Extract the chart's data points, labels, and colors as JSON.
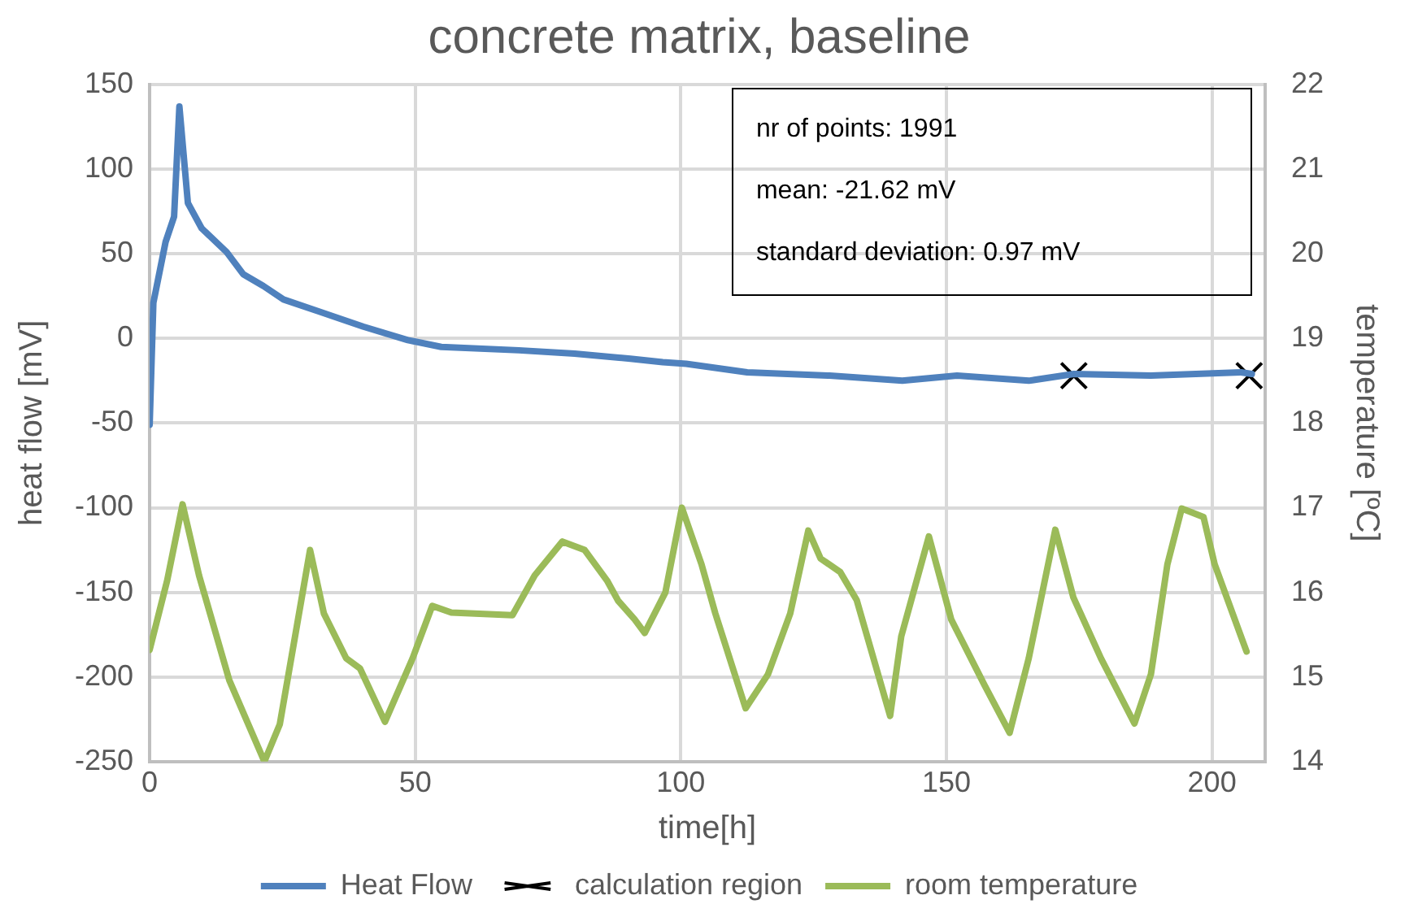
{
  "chart_data": {
    "type": "line",
    "title": "concrete matrix, baseline",
    "xlabel": "time[h]",
    "ylabel": "heat flow [mV]",
    "y2label": "temperature [ºC]",
    "annotations": [
      "nr of points: 1991",
      "mean: -21.62 mV",
      "standard deviation: 0.97 mV"
    ],
    "xlim": [
      0,
      210
    ],
    "xticks": [
      0,
      50,
      100,
      150,
      200
    ],
    "ylim": [
      -250,
      150
    ],
    "yticks": [
      -250,
      -200,
      -150,
      -100,
      -50,
      0,
      50,
      100,
      150
    ],
    "y2lim": [
      14,
      22
    ],
    "y2ticks": [
      14,
      15,
      16,
      17,
      18,
      19,
      20,
      21,
      22
    ],
    "grid": true,
    "legend": "bottom",
    "series": [
      {
        "name": "Heat Flow",
        "type": "line",
        "color": "#4f81bd",
        "marker": "none",
        "line_style": "solid",
        "x": [
          0,
          0.7,
          3,
          4.6,
          5.6,
          7.2,
          9.8,
          14.5,
          17.6,
          21.4,
          25.2,
          31.8,
          40.2,
          48.6,
          54.9,
          69.5,
          80,
          90.5,
          96.6,
          101,
          112.5,
          128,
          141.7,
          152,
          165.5,
          174,
          188.5,
          205.5,
          207.5
        ],
        "values": [
          -51,
          21,
          57,
          72,
          137,
          80,
          65,
          51,
          38,
          31,
          23,
          16,
          7,
          -1,
          -5,
          -7,
          -9,
          -12,
          -14,
          -15,
          -20,
          -22,
          -25,
          -22,
          -25,
          -21,
          -22,
          -20,
          -21
        ]
      },
      {
        "name": "calculation region",
        "type": "scatter",
        "color": "#000000",
        "marker": "cross",
        "x": [
          174,
          207
        ],
        "values": [
          -22,
          -22
        ]
      },
      {
        "name": "room temperature",
        "type": "line",
        "axis": "y2",
        "color": "#9bbb59",
        "marker": "none",
        "line_style": "solid",
        "x": [
          0,
          3.3,
          6.2,
          9.3,
          15,
          21.6,
          24.5,
          30.2,
          32.8,
          37,
          39.6,
          44.3,
          49.5,
          53.2,
          56.8,
          68.3,
          72.5,
          77.7,
          81.9,
          86.1,
          88.2,
          91.3,
          93.2,
          97.1,
          100.2,
          103.9,
          106.5,
          112.2,
          116.4,
          120.6,
          124,
          126.3,
          130,
          133.1,
          139.4,
          141.5,
          146.7,
          150.9,
          157.2,
          161.9,
          165.5,
          170.5,
          173.9,
          179.1,
          185.4,
          188.5,
          191.6,
          194.3,
          198.4,
          200.5,
          206.5
        ],
        "values": [
          15.32,
          16.14,
          17.04,
          16.2,
          14.96,
          14.0,
          14.44,
          16.5,
          15.75,
          15.22,
          15.1,
          14.47,
          15.22,
          15.84,
          15.76,
          15.73,
          16.2,
          16.6,
          16.5,
          16.14,
          15.9,
          15.68,
          15.52,
          16.0,
          17.0,
          16.33,
          15.75,
          14.63,
          15.03,
          15.75,
          16.73,
          16.4,
          16.24,
          15.91,
          14.54,
          15.48,
          16.66,
          15.68,
          14.9,
          14.34,
          15.22,
          16.74,
          15.94,
          15.22,
          14.45,
          15.03,
          16.33,
          16.99,
          16.89,
          16.33,
          15.3
        ]
      }
    ]
  }
}
